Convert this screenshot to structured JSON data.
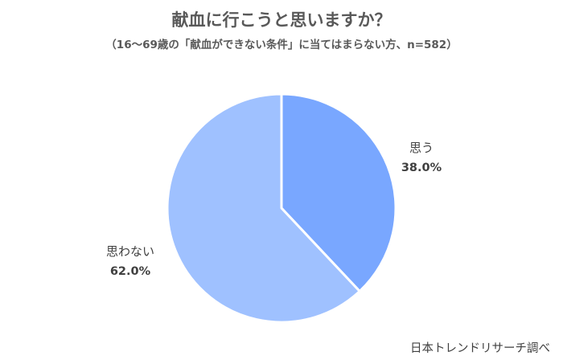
{
  "chart_data": {
    "type": "pie",
    "title": "献血に行こうと思いますか？",
    "subtitle": "（16～69歳の「献血ができない条件」に当てはまらない方、n=582）",
    "slices": [
      {
        "label": "思う",
        "value": 38.0,
        "display": "38.0%",
        "color": "#79a7ff"
      },
      {
        "label": "思わない",
        "value": 62.0,
        "display": "62.0%",
        "color": "#9fc1ff"
      }
    ],
    "start_angle_deg": 0,
    "direction": "clockwise",
    "legend": "none",
    "data_labels": "outside"
  },
  "credit": "日本トレンドリサーチ調べ"
}
